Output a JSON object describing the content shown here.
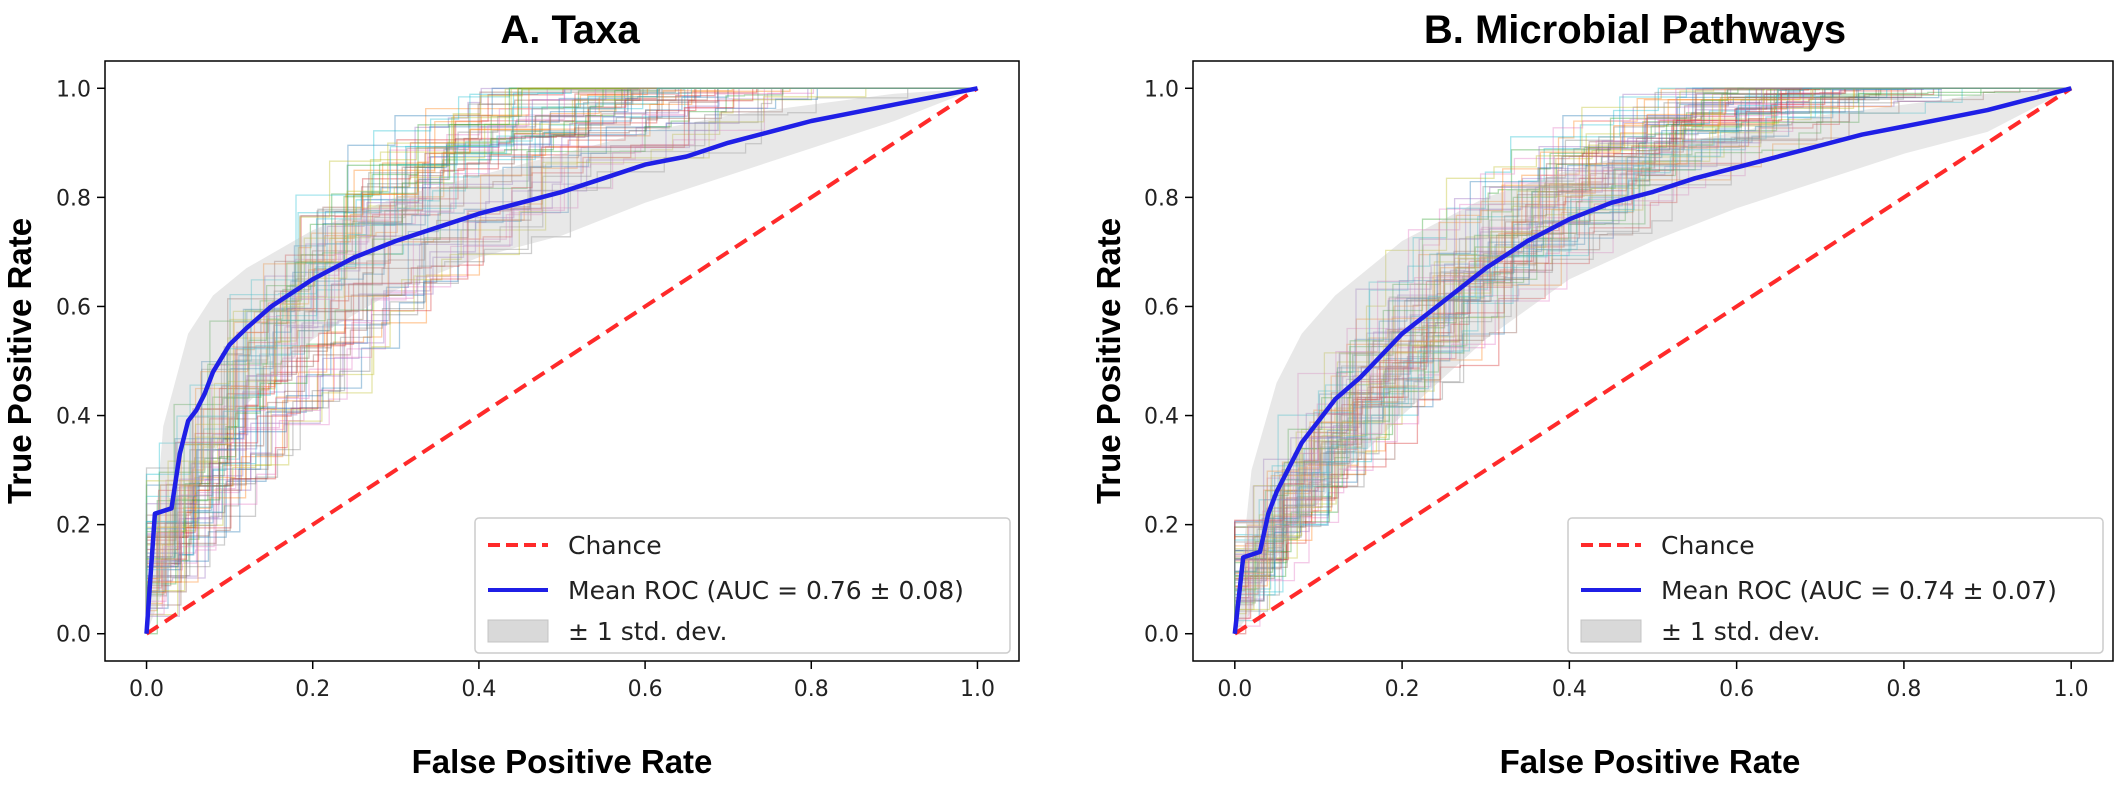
{
  "chart_data": [
    {
      "type": "line",
      "title": "A. Taxa",
      "xlabel": "False Positive Rate",
      "ylabel": "True Positive Rate",
      "xlim": [
        -0.05,
        1.05
      ],
      "ylim": [
        -0.05,
        1.05
      ],
      "xticks": [
        0.0,
        0.2,
        0.4,
        0.6,
        0.8,
        1.0
      ],
      "yticks": [
        0.0,
        0.2,
        0.4,
        0.6,
        0.8,
        1.0
      ],
      "xtick_labels": [
        "0.0",
        "0.2",
        "0.4",
        "0.6",
        "0.8",
        "1.0"
      ],
      "ytick_labels": [
        "0.0",
        "0.2",
        "0.4",
        "0.6",
        "0.8",
        "1.0"
      ],
      "grid": false,
      "legend_position": "bottom-right",
      "legend": [
        "Chance",
        "Mean ROC (AUC = 0.76 ± 0.08)",
        "± 1 std. dev."
      ],
      "series": [
        {
          "name": "Chance",
          "style": "dashed",
          "color": "#ff2a2a",
          "x": [
            0.0,
            1.0
          ],
          "y": [
            0.0,
            1.0
          ]
        },
        {
          "name": "Mean ROC (AUC = 0.76 ± 0.08)",
          "style": "solid",
          "color": "#1f1fe6",
          "x": [
            0.0,
            0.01,
            0.03,
            0.04,
            0.05,
            0.06,
            0.07,
            0.08,
            0.1,
            0.12,
            0.15,
            0.2,
            0.25,
            0.3,
            0.35,
            0.4,
            0.45,
            0.5,
            0.55,
            0.6,
            0.65,
            0.7,
            0.75,
            0.8,
            0.85,
            0.9,
            0.95,
            1.0
          ],
          "y": [
            0.0,
            0.22,
            0.23,
            0.33,
            0.39,
            0.41,
            0.44,
            0.48,
            0.53,
            0.56,
            0.6,
            0.65,
            0.69,
            0.72,
            0.745,
            0.77,
            0.79,
            0.81,
            0.835,
            0.86,
            0.875,
            0.9,
            0.92,
            0.94,
            0.955,
            0.97,
            0.985,
            1.0
          ]
        },
        {
          "name": "± 1 std. dev.",
          "style": "band",
          "color": "#bdbdbd",
          "x": [
            0.0,
            0.02,
            0.05,
            0.08,
            0.12,
            0.2,
            0.3,
            0.4,
            0.5,
            0.6,
            0.7,
            0.8,
            0.9,
            1.0
          ],
          "upper": [
            0.0,
            0.38,
            0.55,
            0.62,
            0.67,
            0.74,
            0.8,
            0.84,
            0.88,
            0.92,
            0.95,
            0.97,
            0.99,
            1.0
          ],
          "lower": [
            0.0,
            0.08,
            0.23,
            0.33,
            0.42,
            0.54,
            0.63,
            0.69,
            0.73,
            0.79,
            0.84,
            0.89,
            0.94,
            1.0
          ]
        }
      ],
      "fold_curves_seed": 11,
      "fold_curve_count": 70,
      "fold_curve_auc_center": 0.76,
      "fold_curve_auc_spread": 0.08
    },
    {
      "type": "line",
      "title": "B. Microbial Pathways",
      "xlabel": "False Positive Rate",
      "ylabel": "True Positive Rate",
      "xlim": [
        -0.05,
        1.05
      ],
      "ylim": [
        -0.05,
        1.05
      ],
      "xticks": [
        0.0,
        0.2,
        0.4,
        0.6,
        0.8,
        1.0
      ],
      "yticks": [
        0.0,
        0.2,
        0.4,
        0.6,
        0.8,
        1.0
      ],
      "xtick_labels": [
        "0.0",
        "0.2",
        "0.4",
        "0.6",
        "0.8",
        "1.0"
      ],
      "ytick_labels": [
        "0.0",
        "0.2",
        "0.4",
        "0.6",
        "0.8",
        "1.0"
      ],
      "grid": false,
      "legend_position": "bottom-right",
      "legend": [
        "Chance",
        "Mean ROC (AUC = 0.74 ± 0.07)",
        "± 1 std. dev."
      ],
      "series": [
        {
          "name": "Chance",
          "style": "dashed",
          "color": "#ff2a2a",
          "x": [
            0.0,
            1.0
          ],
          "y": [
            0.0,
            1.0
          ]
        },
        {
          "name": "Mean ROC (AUC = 0.74 ± 0.07)",
          "style": "solid",
          "color": "#1f1fe6",
          "x": [
            0.0,
            0.01,
            0.03,
            0.04,
            0.05,
            0.06,
            0.08,
            0.1,
            0.12,
            0.15,
            0.2,
            0.25,
            0.3,
            0.35,
            0.4,
            0.45,
            0.5,
            0.55,
            0.6,
            0.65,
            0.7,
            0.75,
            0.8,
            0.85,
            0.9,
            0.95,
            1.0
          ],
          "y": [
            0.0,
            0.14,
            0.15,
            0.22,
            0.26,
            0.29,
            0.35,
            0.39,
            0.43,
            0.47,
            0.55,
            0.61,
            0.67,
            0.72,
            0.76,
            0.79,
            0.81,
            0.835,
            0.855,
            0.875,
            0.895,
            0.915,
            0.93,
            0.945,
            0.96,
            0.98,
            1.0
          ]
        },
        {
          "name": "± 1 std. dev.",
          "style": "band",
          "color": "#bdbdbd",
          "x": [
            0.0,
            0.02,
            0.05,
            0.08,
            0.12,
            0.2,
            0.3,
            0.4,
            0.5,
            0.6,
            0.7,
            0.8,
            0.9,
            1.0
          ],
          "upper": [
            0.0,
            0.3,
            0.46,
            0.55,
            0.62,
            0.72,
            0.8,
            0.85,
            0.89,
            0.92,
            0.95,
            0.97,
            0.99,
            1.0
          ],
          "lower": [
            0.0,
            0.04,
            0.14,
            0.2,
            0.28,
            0.4,
            0.54,
            0.65,
            0.72,
            0.78,
            0.83,
            0.88,
            0.92,
            1.0
          ]
        }
      ],
      "fold_curves_seed": 29,
      "fold_curve_count": 70,
      "fold_curve_auc_center": 0.74,
      "fold_curve_auc_spread": 0.07
    }
  ]
}
